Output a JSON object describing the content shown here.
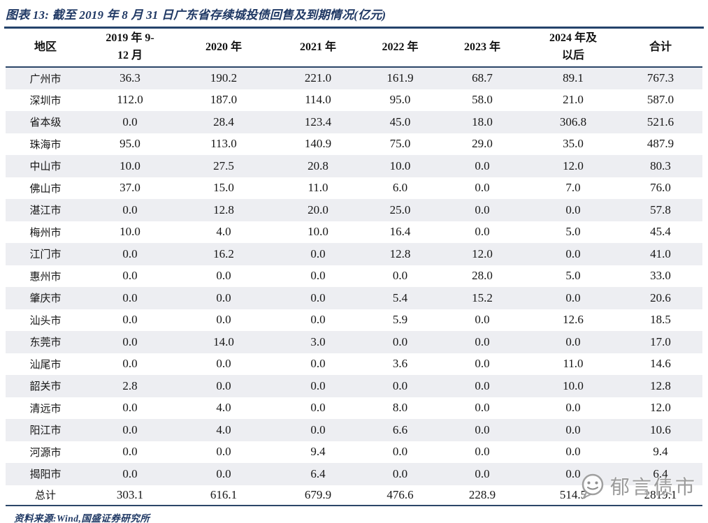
{
  "title": "图表 13:  截至 2019 年 8 月 31 日广东省存续城投债回售及到期情况(亿元)",
  "chart_data": {
    "type": "table",
    "unit": "亿元",
    "columns": [
      {
        "label": "地区",
        "lines": [
          "地区"
        ]
      },
      {
        "label": "2019 年 9-12 月",
        "lines": [
          "2019 年 9-",
          "12 月"
        ]
      },
      {
        "label": "2020 年",
        "lines": [
          "2020 年"
        ]
      },
      {
        "label": "2021 年",
        "lines": [
          "2021 年"
        ]
      },
      {
        "label": "2022 年",
        "lines": [
          "2022 年"
        ]
      },
      {
        "label": "2023 年",
        "lines": [
          "2023 年"
        ]
      },
      {
        "label": "2024 年及以后",
        "lines": [
          "2024 年及",
          "以后"
        ]
      },
      {
        "label": "合计",
        "lines": [
          "合计"
        ]
      }
    ],
    "rows": [
      {
        "region": "广州市",
        "values": [
          "36.3",
          "190.2",
          "221.0",
          "161.9",
          "68.7",
          "89.1",
          "767.3"
        ]
      },
      {
        "region": "深圳市",
        "values": [
          "112.0",
          "187.0",
          "114.0",
          "95.0",
          "58.0",
          "21.0",
          "587.0"
        ]
      },
      {
        "region": "省本级",
        "values": [
          "0.0",
          "28.4",
          "123.4",
          "45.0",
          "18.0",
          "306.8",
          "521.6"
        ]
      },
      {
        "region": "珠海市",
        "values": [
          "95.0",
          "113.0",
          "140.9",
          "75.0",
          "29.0",
          "35.0",
          "487.9"
        ]
      },
      {
        "region": "中山市",
        "values": [
          "10.0",
          "27.5",
          "20.8",
          "10.0",
          "0.0",
          "12.0",
          "80.3"
        ]
      },
      {
        "region": "佛山市",
        "values": [
          "37.0",
          "15.0",
          "11.0",
          "6.0",
          "0.0",
          "7.0",
          "76.0"
        ]
      },
      {
        "region": "湛江市",
        "values": [
          "0.0",
          "12.8",
          "20.0",
          "25.0",
          "0.0",
          "0.0",
          "57.8"
        ]
      },
      {
        "region": "梅州市",
        "values": [
          "10.0",
          "4.0",
          "10.0",
          "16.4",
          "0.0",
          "5.0",
          "45.4"
        ]
      },
      {
        "region": "江门市",
        "values": [
          "0.0",
          "16.2",
          "0.0",
          "12.8",
          "12.0",
          "0.0",
          "41.0"
        ]
      },
      {
        "region": "惠州市",
        "values": [
          "0.0",
          "0.0",
          "0.0",
          "0.0",
          "28.0",
          "5.0",
          "33.0"
        ]
      },
      {
        "region": "肇庆市",
        "values": [
          "0.0",
          "0.0",
          "0.0",
          "5.4",
          "15.2",
          "0.0",
          "20.6"
        ]
      },
      {
        "region": "汕头市",
        "values": [
          "0.0",
          "0.0",
          "0.0",
          "5.9",
          "0.0",
          "12.6",
          "18.5"
        ]
      },
      {
        "region": "东莞市",
        "values": [
          "0.0",
          "14.0",
          "3.0",
          "0.0",
          "0.0",
          "0.0",
          "17.0"
        ]
      },
      {
        "region": "汕尾市",
        "values": [
          "0.0",
          "0.0",
          "0.0",
          "3.6",
          "0.0",
          "11.0",
          "14.6"
        ]
      },
      {
        "region": "韶关市",
        "values": [
          "2.8",
          "0.0",
          "0.0",
          "0.0",
          "0.0",
          "10.0",
          "12.8"
        ]
      },
      {
        "region": "清远市",
        "values": [
          "0.0",
          "4.0",
          "0.0",
          "8.0",
          "0.0",
          "0.0",
          "12.0"
        ]
      },
      {
        "region": "阳江市",
        "values": [
          "0.0",
          "4.0",
          "0.0",
          "6.6",
          "0.0",
          "0.0",
          "10.6"
        ]
      },
      {
        "region": "河源市",
        "values": [
          "0.0",
          "0.0",
          "9.4",
          "0.0",
          "0.0",
          "0.0",
          "9.4"
        ]
      },
      {
        "region": "揭阳市",
        "values": [
          "0.0",
          "0.0",
          "6.4",
          "0.0",
          "0.0",
          "0.0",
          "6.4"
        ]
      }
    ],
    "total_row": {
      "region": "总计",
      "values": [
        "303.1",
        "616.1",
        "679.9",
        "476.6",
        "228.9",
        "514.5",
        "2819.1"
      ]
    }
  },
  "footer": {
    "source_label": "资料来源:Wind,国盛证券研究所"
  },
  "watermark": {
    "icon": "wechat-emoji-icon",
    "text": "郁言债市"
  },
  "colors": {
    "title_navy": "#1F3864",
    "rule_navy": "#2B4668",
    "row_shade": "#EDEEF2",
    "watermark_gray": "#8A8A8A"
  }
}
